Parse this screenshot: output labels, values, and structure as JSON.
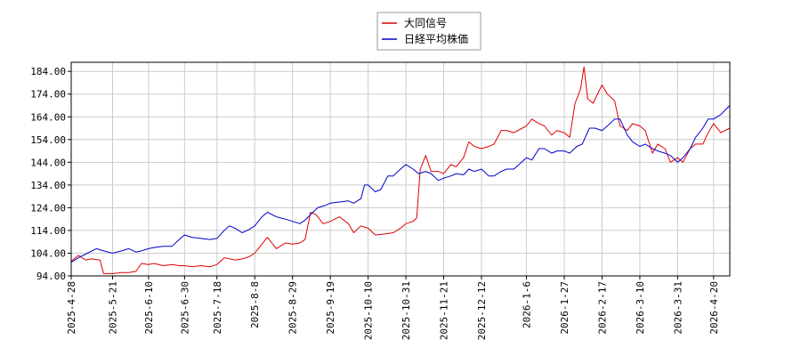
{
  "chart_data": {
    "type": "line",
    "legend_position": "top-center",
    "grid": true,
    "ylim": [
      94,
      188
    ],
    "xlim": [
      "2025-04-28",
      "2026-04-29"
    ],
    "y_ticks": [
      94,
      104,
      114,
      124,
      134,
      144,
      154,
      164,
      174,
      184
    ],
    "y_tick_labels": [
      "94.00",
      "104.00",
      "114.00",
      "124.00",
      "134.00",
      "144.00",
      "154.00",
      "164.00",
      "174.00",
      "184.00"
    ],
    "x_ticks": [
      "2025-4-28",
      "2025-5-21",
      "2025-6-10",
      "2025-6-30",
      "2025-7-18",
      "2025-8-8",
      "2025-8-29",
      "2025-9-19",
      "2025-10-10",
      "2025-10-31",
      "2025-11-21",
      "2025-12-12",
      "2026-1-6",
      "2026-1-27",
      "2026-2-17",
      "2026-3-10",
      "2026-3-31",
      "2026-4-20"
    ],
    "series": [
      {
        "name": "大同信号",
        "color": "#e00000",
        "points": [
          [
            "2025-04-28",
            100.5
          ],
          [
            "2025-05-02",
            103.0
          ],
          [
            "2025-05-06",
            101.0
          ],
          [
            "2025-05-09",
            101.5
          ],
          [
            "2025-05-14",
            101.0
          ],
          [
            "2025-05-16",
            95.0
          ],
          [
            "2025-05-21",
            95.0
          ],
          [
            "2025-05-26",
            95.5
          ],
          [
            "2025-05-30",
            95.5
          ],
          [
            "2025-06-03",
            96.0
          ],
          [
            "2025-06-06",
            99.5
          ],
          [
            "2025-06-10",
            99.0
          ],
          [
            "2025-06-13",
            99.5
          ],
          [
            "2025-06-18",
            98.5
          ],
          [
            "2025-06-23",
            99.0
          ],
          [
            "2025-06-27",
            98.5
          ],
          [
            "2025-06-30",
            98.5
          ],
          [
            "2025-07-04",
            98.0
          ],
          [
            "2025-07-09",
            98.5
          ],
          [
            "2025-07-14",
            98.0
          ],
          [
            "2025-07-18",
            99.0
          ],
          [
            "2025-07-22",
            102.0
          ],
          [
            "2025-07-28",
            101.0
          ],
          [
            "2025-08-01",
            101.5
          ],
          [
            "2025-08-05",
            102.5
          ],
          [
            "2025-08-08",
            104.0
          ],
          [
            "2025-08-12",
            108.0
          ],
          [
            "2025-08-15",
            111.0
          ],
          [
            "2025-08-20",
            106.0
          ],
          [
            "2025-08-25",
            108.5
          ],
          [
            "2025-08-29",
            108.0
          ],
          [
            "2025-09-02",
            108.5
          ],
          [
            "2025-09-05",
            110.0
          ],
          [
            "2025-09-08",
            122.0
          ],
          [
            "2025-09-11",
            121.0
          ],
          [
            "2025-09-15",
            117.0
          ],
          [
            "2025-09-19",
            118.0
          ],
          [
            "2025-09-24",
            120.0
          ],
          [
            "2025-09-29",
            117.0
          ],
          [
            "2025-10-02",
            113.0
          ],
          [
            "2025-10-06",
            116.0
          ],
          [
            "2025-10-10",
            115.0
          ],
          [
            "2025-10-14",
            112.0
          ],
          [
            "2025-10-20",
            112.5
          ],
          [
            "2025-10-24",
            113.0
          ],
          [
            "2025-10-28",
            115.0
          ],
          [
            "2025-10-31",
            117.0
          ],
          [
            "2025-11-04",
            118.0
          ],
          [
            "2025-11-06",
            119.5
          ],
          [
            "2025-11-08",
            141.0
          ],
          [
            "2025-11-11",
            147.0
          ],
          [
            "2025-11-14",
            140.0
          ],
          [
            "2025-11-18",
            140.0
          ],
          [
            "2025-11-21",
            139.0
          ],
          [
            "2025-11-25",
            143.0
          ],
          [
            "2025-11-28",
            142.0
          ],
          [
            "2025-12-02",
            146.0
          ],
          [
            "2025-12-05",
            153.0
          ],
          [
            "2025-12-08",
            151.0
          ],
          [
            "2025-12-12",
            150.0
          ],
          [
            "2025-12-16",
            151.0
          ],
          [
            "2025-12-19",
            152.0
          ],
          [
            "2025-12-23",
            158.0
          ],
          [
            "2025-12-26",
            158.0
          ],
          [
            "2025-12-30",
            157.0
          ],
          [
            "2026-01-06",
            160.0
          ],
          [
            "2026-01-09",
            163.0
          ],
          [
            "2026-01-13",
            161.0
          ],
          [
            "2026-01-16",
            160.0
          ],
          [
            "2026-01-20",
            156.0
          ],
          [
            "2026-01-23",
            158.0
          ],
          [
            "2026-01-27",
            157.0
          ],
          [
            "2026-01-30",
            155.0
          ],
          [
            "2026-02-02",
            170.0
          ],
          [
            "2026-02-05",
            176.0
          ],
          [
            "2026-02-07",
            186.0
          ],
          [
            "2026-02-09",
            172.0
          ],
          [
            "2026-02-12",
            170.0
          ],
          [
            "2026-02-17",
            178.0
          ],
          [
            "2026-02-20",
            174.0
          ],
          [
            "2026-02-24",
            171.0
          ],
          [
            "2026-02-27",
            160.0
          ],
          [
            "2026-03-03",
            158.0
          ],
          [
            "2026-03-06",
            161.0
          ],
          [
            "2026-03-10",
            160.0
          ],
          [
            "2026-03-13",
            158.0
          ],
          [
            "2026-03-17",
            148.0
          ],
          [
            "2026-03-20",
            152.0
          ],
          [
            "2026-03-24",
            150.0
          ],
          [
            "2026-03-27",
            144.0
          ],
          [
            "2026-03-31",
            146.0
          ],
          [
            "2026-04-03",
            144.0
          ],
          [
            "2026-04-07",
            150.0
          ],
          [
            "2026-04-10",
            152.0
          ],
          [
            "2026-04-14",
            152.0
          ],
          [
            "2026-04-17",
            157.0
          ],
          [
            "2026-04-20",
            161.0
          ],
          [
            "2026-04-24",
            157.0
          ],
          [
            "2026-04-29",
            159.0
          ]
        ]
      },
      {
        "name": "日経平均株価",
        "color": "#0000cc",
        "points": [
          [
            "2025-04-28",
            100.0
          ],
          [
            "2025-05-02",
            102.0
          ],
          [
            "2025-05-07",
            104.0
          ],
          [
            "2025-05-12",
            106.0
          ],
          [
            "2025-05-16",
            105.0
          ],
          [
            "2025-05-21",
            104.0
          ],
          [
            "2025-05-26",
            105.0
          ],
          [
            "2025-05-30",
            106.0
          ],
          [
            "2025-06-03",
            104.5
          ],
          [
            "2025-06-06",
            105.0
          ],
          [
            "2025-06-10",
            106.0
          ],
          [
            "2025-06-13",
            106.5
          ],
          [
            "2025-06-18",
            107.0
          ],
          [
            "2025-06-23",
            107.0
          ],
          [
            "2025-06-27",
            110.0
          ],
          [
            "2025-06-30",
            112.0
          ],
          [
            "2025-07-04",
            111.0
          ],
          [
            "2025-07-09",
            110.5
          ],
          [
            "2025-07-14",
            110.0
          ],
          [
            "2025-07-18",
            110.5
          ],
          [
            "2025-07-22",
            114.0
          ],
          [
            "2025-07-25",
            116.0
          ],
          [
            "2025-07-28",
            115.0
          ],
          [
            "2025-08-01",
            113.0
          ],
          [
            "2025-08-05",
            114.5
          ],
          [
            "2025-08-08",
            116.0
          ],
          [
            "2025-08-12",
            120.0
          ],
          [
            "2025-08-15",
            122.0
          ],
          [
            "2025-08-20",
            120.0
          ],
          [
            "2025-08-25",
            119.0
          ],
          [
            "2025-08-29",
            118.0
          ],
          [
            "2025-09-02",
            117.0
          ],
          [
            "2025-09-05",
            118.5
          ],
          [
            "2025-09-08",
            121.0
          ],
          [
            "2025-09-12",
            124.0
          ],
          [
            "2025-09-16",
            125.0
          ],
          [
            "2025-09-19",
            126.0
          ],
          [
            "2025-09-24",
            126.5
          ],
          [
            "2025-09-29",
            127.0
          ],
          [
            "2025-10-02",
            126.0
          ],
          [
            "2025-10-06",
            128.0
          ],
          [
            "2025-10-08",
            134.0
          ],
          [
            "2025-10-10",
            134.0
          ],
          [
            "2025-10-14",
            131.0
          ],
          [
            "2025-10-17",
            132.0
          ],
          [
            "2025-10-21",
            138.0
          ],
          [
            "2025-10-24",
            138.0
          ],
          [
            "2025-10-28",
            141.0
          ],
          [
            "2025-10-31",
            143.0
          ],
          [
            "2025-11-04",
            141.0
          ],
          [
            "2025-11-07",
            139.0
          ],
          [
            "2025-11-11",
            140.0
          ],
          [
            "2025-11-14",
            139.0
          ],
          [
            "2025-11-18",
            136.0
          ],
          [
            "2025-11-21",
            137.0
          ],
          [
            "2025-11-25",
            138.0
          ],
          [
            "2025-11-28",
            139.0
          ],
          [
            "2025-12-02",
            138.5
          ],
          [
            "2025-12-05",
            141.0
          ],
          [
            "2025-12-08",
            140.0
          ],
          [
            "2025-12-12",
            141.0
          ],
          [
            "2025-12-16",
            138.0
          ],
          [
            "2025-12-19",
            138.0
          ],
          [
            "2025-12-23",
            140.0
          ],
          [
            "2025-12-26",
            141.0
          ],
          [
            "2025-12-30",
            141.0
          ],
          [
            "2026-01-06",
            146.0
          ],
          [
            "2026-01-09",
            145.0
          ],
          [
            "2026-01-13",
            150.0
          ],
          [
            "2026-01-16",
            150.0
          ],
          [
            "2026-01-20",
            148.0
          ],
          [
            "2026-01-23",
            149.0
          ],
          [
            "2026-01-27",
            149.0
          ],
          [
            "2026-01-30",
            148.0
          ],
          [
            "2026-02-03",
            151.0
          ],
          [
            "2026-02-06",
            152.0
          ],
          [
            "2026-02-10",
            159.0
          ],
          [
            "2026-02-13",
            159.0
          ],
          [
            "2026-02-17",
            158.0
          ],
          [
            "2026-02-20",
            160.0
          ],
          [
            "2026-02-24",
            163.0
          ],
          [
            "2026-02-27",
            163.0
          ],
          [
            "2026-03-03",
            156.0
          ],
          [
            "2026-03-06",
            153.0
          ],
          [
            "2026-03-10",
            151.0
          ],
          [
            "2026-03-13",
            152.0
          ],
          [
            "2026-03-17",
            150.0
          ],
          [
            "2026-03-20",
            149.0
          ],
          [
            "2026-03-24",
            148.0
          ],
          [
            "2026-03-27",
            147.0
          ],
          [
            "2026-03-31",
            144.0
          ],
          [
            "2026-04-03",
            146.0
          ],
          [
            "2026-04-07",
            150.0
          ],
          [
            "2026-04-10",
            155.0
          ],
          [
            "2026-04-14",
            159.0
          ],
          [
            "2026-04-17",
            163.0
          ],
          [
            "2026-04-20",
            163.0
          ],
          [
            "2026-04-24",
            165.0
          ],
          [
            "2026-04-29",
            169.0
          ]
        ]
      }
    ]
  }
}
